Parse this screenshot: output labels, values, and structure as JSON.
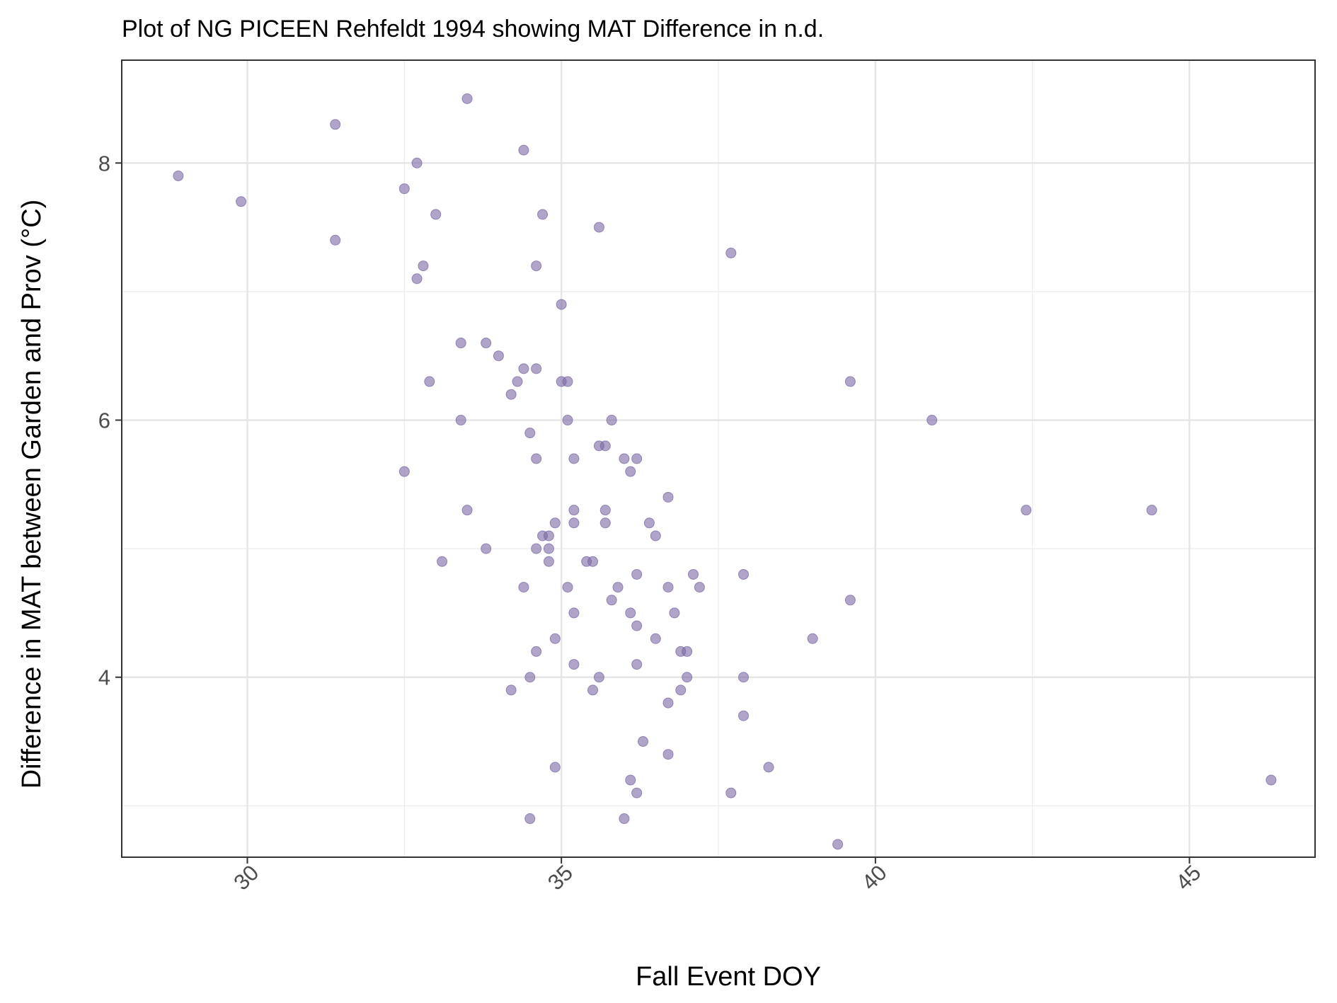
{
  "chart_data": {
    "type": "scatter",
    "title": "Plot of NG PICEEN Rehfeldt 1994 showing MAT Difference in n.d.",
    "xlabel": "Fall Event DOY",
    "ylabel": "Difference in MAT between Garden and Prov (°C)",
    "xlim": [
      28.0,
      47.0
    ],
    "ylim": [
      2.6,
      8.8
    ],
    "x_ticks": [
      30,
      35,
      40,
      45
    ],
    "x_tick_labels": [
      "30",
      "35",
      "40",
      "45"
    ],
    "y_ticks": [
      4,
      6,
      8
    ],
    "y_tick_labels": [
      "4",
      "6",
      "8"
    ],
    "grid": true,
    "point_color": "#7b69a3",
    "points": [
      {
        "x": 28.9,
        "y": 7.9
      },
      {
        "x": 29.9,
        "y": 7.7
      },
      {
        "x": 31.4,
        "y": 8.3
      },
      {
        "x": 31.4,
        "y": 7.4
      },
      {
        "x": 32.5,
        "y": 7.8
      },
      {
        "x": 32.5,
        "y": 5.6
      },
      {
        "x": 32.7,
        "y": 8.0
      },
      {
        "x": 32.7,
        "y": 7.1
      },
      {
        "x": 32.8,
        "y": 7.2
      },
      {
        "x": 32.9,
        "y": 6.3
      },
      {
        "x": 33.0,
        "y": 7.6
      },
      {
        "x": 33.1,
        "y": 4.9
      },
      {
        "x": 33.4,
        "y": 6.6
      },
      {
        "x": 33.4,
        "y": 6.0
      },
      {
        "x": 33.5,
        "y": 8.5
      },
      {
        "x": 33.5,
        "y": 5.3
      },
      {
        "x": 33.8,
        "y": 6.6
      },
      {
        "x": 33.8,
        "y": 5.0
      },
      {
        "x": 34.0,
        "y": 6.5
      },
      {
        "x": 34.2,
        "y": 6.2
      },
      {
        "x": 34.2,
        "y": 3.9
      },
      {
        "x": 34.3,
        "y": 6.3
      },
      {
        "x": 34.4,
        "y": 8.1
      },
      {
        "x": 34.4,
        "y": 6.4
      },
      {
        "x": 34.4,
        "y": 4.7
      },
      {
        "x": 34.5,
        "y": 5.9
      },
      {
        "x": 34.5,
        "y": 4.0
      },
      {
        "x": 34.5,
        "y": 2.9
      },
      {
        "x": 34.6,
        "y": 7.2
      },
      {
        "x": 34.6,
        "y": 6.4
      },
      {
        "x": 34.6,
        "y": 5.7
      },
      {
        "x": 34.6,
        "y": 5.0
      },
      {
        "x": 34.6,
        "y": 4.2
      },
      {
        "x": 34.7,
        "y": 7.6
      },
      {
        "x": 34.7,
        "y": 5.1
      },
      {
        "x": 34.8,
        "y": 5.1
      },
      {
        "x": 34.8,
        "y": 5.0
      },
      {
        "x": 34.8,
        "y": 4.9
      },
      {
        "x": 34.9,
        "y": 5.2
      },
      {
        "x": 34.9,
        "y": 4.3
      },
      {
        "x": 34.9,
        "y": 3.3
      },
      {
        "x": 35.0,
        "y": 6.9
      },
      {
        "x": 35.0,
        "y": 6.3
      },
      {
        "x": 35.1,
        "y": 6.3
      },
      {
        "x": 35.1,
        "y": 6.0
      },
      {
        "x": 35.1,
        "y": 4.7
      },
      {
        "x": 35.2,
        "y": 5.7
      },
      {
        "x": 35.2,
        "y": 5.3
      },
      {
        "x": 35.2,
        "y": 5.2
      },
      {
        "x": 35.2,
        "y": 4.5
      },
      {
        "x": 35.2,
        "y": 4.1
      },
      {
        "x": 35.4,
        "y": 4.9
      },
      {
        "x": 35.5,
        "y": 4.9
      },
      {
        "x": 35.5,
        "y": 3.9
      },
      {
        "x": 35.6,
        "y": 7.5
      },
      {
        "x": 35.6,
        "y": 5.8
      },
      {
        "x": 35.6,
        "y": 4.0
      },
      {
        "x": 35.7,
        "y": 5.8
      },
      {
        "x": 35.7,
        "y": 5.3
      },
      {
        "x": 35.7,
        "y": 5.2
      },
      {
        "x": 35.8,
        "y": 6.0
      },
      {
        "x": 35.8,
        "y": 4.6
      },
      {
        "x": 35.9,
        "y": 4.7
      },
      {
        "x": 36.0,
        "y": 5.7
      },
      {
        "x": 36.0,
        "y": 2.9
      },
      {
        "x": 36.1,
        "y": 5.6
      },
      {
        "x": 36.1,
        "y": 4.5
      },
      {
        "x": 36.1,
        "y": 3.2
      },
      {
        "x": 36.2,
        "y": 5.7
      },
      {
        "x": 36.2,
        "y": 4.8
      },
      {
        "x": 36.2,
        "y": 4.4
      },
      {
        "x": 36.2,
        "y": 4.1
      },
      {
        "x": 36.2,
        "y": 3.1
      },
      {
        "x": 36.3,
        "y": 3.5
      },
      {
        "x": 36.4,
        "y": 5.2
      },
      {
        "x": 36.5,
        "y": 5.1
      },
      {
        "x": 36.5,
        "y": 4.3
      },
      {
        "x": 36.7,
        "y": 5.4
      },
      {
        "x": 36.7,
        "y": 4.7
      },
      {
        "x": 36.7,
        "y": 3.8
      },
      {
        "x": 36.7,
        "y": 3.4
      },
      {
        "x": 36.8,
        "y": 4.5
      },
      {
        "x": 36.9,
        "y": 4.2
      },
      {
        "x": 36.9,
        "y": 3.9
      },
      {
        "x": 37.0,
        "y": 4.2
      },
      {
        "x": 37.0,
        "y": 4.0
      },
      {
        "x": 37.1,
        "y": 4.8
      },
      {
        "x": 37.2,
        "y": 4.7
      },
      {
        "x": 37.7,
        "y": 7.3
      },
      {
        "x": 37.7,
        "y": 3.1
      },
      {
        "x": 37.9,
        "y": 4.8
      },
      {
        "x": 37.9,
        "y": 4.0
      },
      {
        "x": 37.9,
        "y": 3.7
      },
      {
        "x": 38.3,
        "y": 3.3
      },
      {
        "x": 39.0,
        "y": 4.3
      },
      {
        "x": 39.4,
        "y": 2.7
      },
      {
        "x": 39.6,
        "y": 6.3
      },
      {
        "x": 39.6,
        "y": 4.6
      },
      {
        "x": 40.9,
        "y": 6.0
      },
      {
        "x": 42.4,
        "y": 5.3
      },
      {
        "x": 44.4,
        "y": 5.3
      },
      {
        "x": 46.3,
        "y": 3.2
      }
    ]
  }
}
